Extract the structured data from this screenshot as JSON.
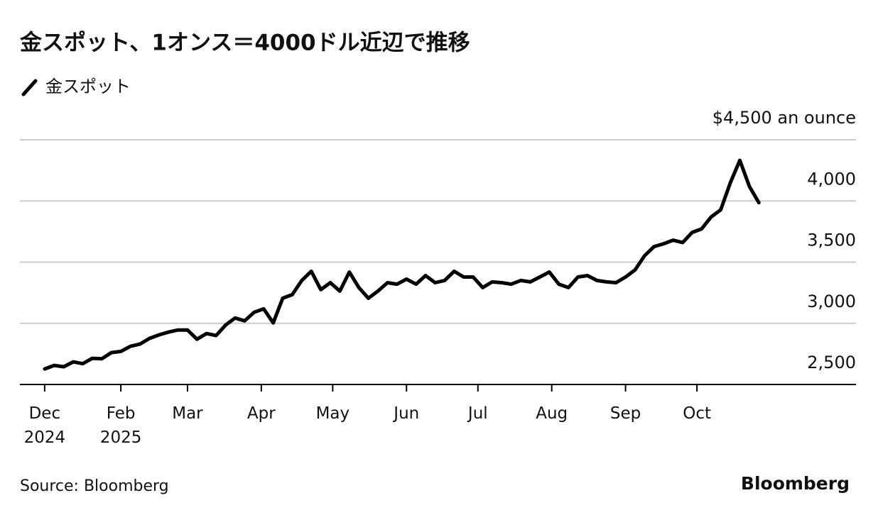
{
  "chart_data": {
    "type": "line",
    "title": "金スポット、1オンス＝4000ドル近辺で推移",
    "series": [
      {
        "name": "金スポット",
        "color": "#000000",
        "values": [
          2627,
          2656,
          2645,
          2685,
          2670,
          2714,
          2710,
          2760,
          2770,
          2812,
          2830,
          2876,
          2905,
          2928,
          2945,
          2945,
          2870,
          2916,
          2900,
          2985,
          3043,
          3020,
          3090,
          3118,
          3003,
          3205,
          3234,
          3350,
          3425,
          3275,
          3332,
          3263,
          3419,
          3292,
          3205,
          3263,
          3332,
          3320,
          3361,
          3320,
          3390,
          3332,
          3350,
          3425,
          3378,
          3378,
          3292,
          3338,
          3332,
          3320,
          3350,
          3338,
          3378,
          3419,
          3320,
          3292,
          3378,
          3390,
          3350,
          3338,
          3332,
          3378,
          3436,
          3552,
          3627,
          3650,
          3679,
          3660,
          3743,
          3772,
          3870,
          3928,
          4147,
          4332,
          4119,
          3986
        ]
      }
    ],
    "ylim": [
      2500,
      4500
    ],
    "yticks": [
      {
        "value": 2500,
        "label": "2,500"
      },
      {
        "value": 3000,
        "label": "3,000"
      },
      {
        "value": 3500,
        "label": "3,500"
      },
      {
        "value": 4000,
        "label": "4,000"
      },
      {
        "value": 4500,
        "label": "$4,500 an ounce"
      }
    ],
    "xlim": [
      -2.6,
      85.2
    ],
    "xticks": [
      {
        "value": 0,
        "label": "Dec 2024"
      },
      {
        "value": 8,
        "label": "Feb 2025"
      },
      {
        "value": 15,
        "label": "Mar"
      },
      {
        "value": 22.75,
        "label": "Apr"
      },
      {
        "value": 30.25,
        "label": "May"
      },
      {
        "value": 38,
        "label": "Jun"
      },
      {
        "value": 45.5,
        "label": "Jul"
      },
      {
        "value": 53.25,
        "label": "Aug"
      },
      {
        "value": 61,
        "label": "Sep"
      },
      {
        "value": 68.5,
        "label": "Oct"
      }
    ],
    "grid": true,
    "source": "Source: Bloomberg",
    "brand": "Bloomberg"
  }
}
